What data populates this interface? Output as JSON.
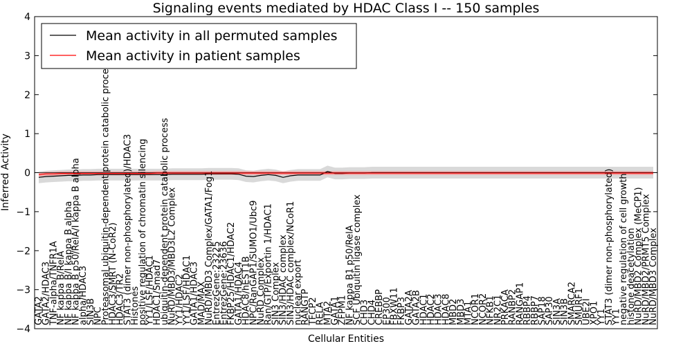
{
  "chart_data": {
    "type": "line",
    "title": "Signaling events mediated by HDAC Class I -- 150 samples",
    "xlabel": "Cellular Entities",
    "ylabel": "Inferred Activity",
    "ylim": [
      -4,
      4
    ],
    "yticks": [
      4,
      3,
      2,
      1,
      0,
      -1,
      -2,
      -3,
      -4
    ],
    "grid": false,
    "legend_position": "top-left",
    "categories": [
      "GATA2",
      "GATA2/HDAC3",
      "TNF-alpha/TNFR1A",
      "NF kappa B/RelA",
      "NF kappa B/I kappa B alpha",
      "NF kappa B p50/RelA/I kappa B alpha",
      "alpha/HDAC3",
      "SIN3B",
      "NPC",
      "Proteasomal ubiquitin-dependent protein catabolic process",
      "HDAC3/SMRT (N-CoR2)",
      "HDAC3/TR2",
      "STAT3 (dimer non-phosphorylated)/HDAC3",
      "Histones",
      "positive regulation of chromatin silencing",
      "YY1/LSF/HDAC1",
      "HDAC1/Smad7",
      "ubiquitin-dependent protein catabolic process",
      "NuRD/MBD3/MBD3L2 Complex",
      "YY1/HDAC2",
      "YY1/LSF/HDAC1",
      "GATA1/HDAC3",
      "MAD/MAX",
      "NuRD/MBD3 Complex/GATA1/Fog1",
      "EntrezGene:23225",
      "EntrezGene:23636",
      "FKBP25/HDAC1/HDAC2",
      "GATA1/HDAC4",
      "HDAC8/hEST1B",
      "NPC/RanGAP1/SUMO1/Ubc9",
      "NuRD Complex",
      "Ran/GTP/Exportin 1/HDAC1",
      "SIN3 Complex",
      "SIN3/HDAC complex",
      "SIN3/HDAC complex/NCoR1",
      "nuclear export",
      "RANGTP",
      "TFCP2",
      "RELA",
      "MTA2",
      "GATA1",
      "ZFPM1",
      "NF kappa B1 p50/RelA",
      "SCF Ubiquitin ligase complex",
      "CHD3",
      "CHD4",
      "CREBBP",
      "EP300",
      "FBXW11",
      "FKBP3",
      "GATA2A",
      "GATA2B",
      "HDAC1",
      "HDAC2",
      "HDAC3",
      "HDAC8",
      "MBD2",
      "MBD3",
      "MTA1",
      "NCOR1",
      "NCOR2",
      "NFKB1",
      "NR2C1",
      "PRKACA",
      "RANBP2",
      "RANGAP1",
      "RBBP4",
      "RBBP7",
      "SAP18",
      "SAP30",
      "SIN3A",
      "SIN3B",
      "SMARCA2",
      "SMURF1",
      "UBE2I",
      "XPO1",
      "YY1",
      "STAT3 (dimer non-phosphorylated)",
      "YY1",
      "negative regulation of cell growth",
      "histone deacetylation",
      "NuRD/MBD2 Complex (MeCP1)",
      "NuRD/MBD2/PRMT5 Complex",
      "NuRD/MBD3 Complex"
    ],
    "series": [
      {
        "name": "Mean activity in all permuted samples",
        "color": "#000000",
        "values": [
          -0.12,
          -0.1,
          -0.09,
          -0.08,
          -0.07,
          -0.07,
          -0.06,
          -0.06,
          -0.05,
          -0.05,
          -0.05,
          -0.05,
          -0.05,
          -0.05,
          -0.05,
          -0.05,
          -0.05,
          -0.05,
          -0.04,
          -0.04,
          -0.04,
          -0.04,
          -0.04,
          -0.03,
          -0.03,
          -0.03,
          -0.03,
          -0.04,
          -0.09,
          -0.1,
          -0.07,
          -0.05,
          -0.07,
          -0.12,
          -0.08,
          -0.06,
          -0.06,
          -0.06,
          -0.06,
          0.03,
          -0.02,
          -0.02,
          -0.01,
          -0.01,
          -0.01,
          0,
          0,
          0,
          0,
          0,
          0,
          0,
          0,
          0,
          0,
          0,
          0,
          0,
          0,
          0,
          0,
          0,
          0,
          0,
          0,
          0,
          0,
          0,
          0,
          0,
          0,
          0,
          0,
          0,
          0,
          0,
          0,
          0,
          0,
          0,
          0,
          0,
          0,
          0
        ],
        "band": 0.15,
        "band_color": "#aaaaaa"
      },
      {
        "name": "Mean activity in patient samples",
        "color": "#ff0000",
        "values": [
          -0.05,
          -0.03,
          -0.03,
          -0.02,
          -0.02,
          -0.02,
          -0.02,
          -0.02,
          -0.02,
          -0.02,
          -0.02,
          -0.02,
          -0.02,
          -0.02,
          -0.02,
          -0.02,
          -0.01,
          -0.01,
          -0.01,
          -0.01,
          -0.01,
          -0.01,
          -0.01,
          -0.01,
          -0.01,
          -0.01,
          -0.01,
          -0.01,
          -0.01,
          -0.01,
          -0.01,
          -0.01,
          -0.01,
          -0.01,
          -0.01,
          -0.01,
          -0.01,
          -0.01,
          -0.01,
          -0.01,
          -0.01,
          -0.01,
          -0.01,
          -0.01,
          -0.01,
          -0.01,
          -0.01,
          -0.01,
          -0.01,
          -0.01,
          -0.01,
          -0.01,
          -0.01,
          -0.01,
          -0.01,
          -0.01,
          -0.01,
          -0.01,
          -0.01,
          -0.01,
          -0.01,
          -0.01,
          -0.01,
          -0.01,
          -0.01,
          -0.01,
          -0.01,
          -0.01,
          -0.01,
          -0.01,
          -0.01,
          -0.01,
          -0.01,
          -0.01,
          -0.01,
          -0.01,
          -0.01,
          -0.01,
          -0.01,
          -0.01,
          -0.01,
          -0.01,
          -0.01,
          -0.01
        ],
        "band": 0.05,
        "band_color": "#ff8080"
      }
    ]
  }
}
